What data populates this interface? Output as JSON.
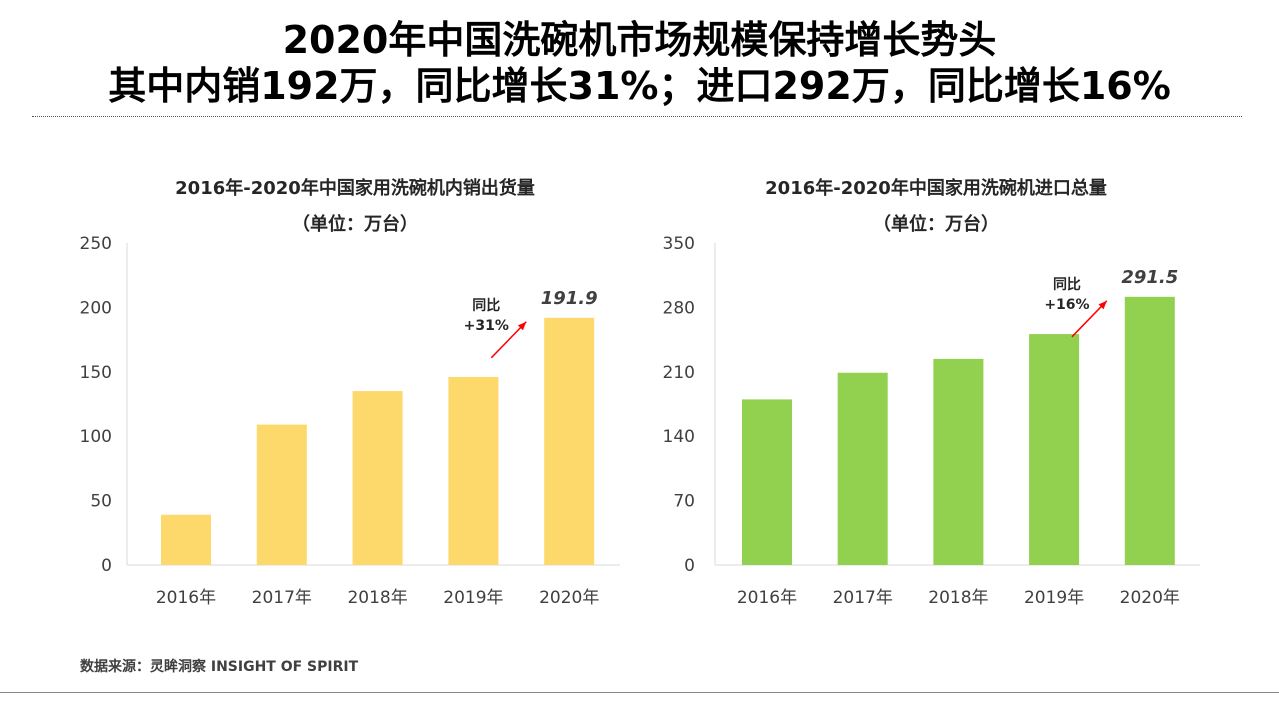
{
  "title": {
    "line1": "2020年中国洗碗机市场规模保持增长势头",
    "line2": "其中内销192万，同比增长31%；进口292万，同比增长16%"
  },
  "source": "数据来源：灵眸洞察 INSIGHT OF SPIRIT",
  "chart_data": [
    {
      "type": "bar",
      "title": "2016年-2020年中国家用洗碗机内销出货量",
      "subtitle": "（单位：万台）",
      "categories": [
        "2016年",
        "2017年",
        "2018年",
        "2019年",
        "2020年"
      ],
      "values": [
        39,
        109,
        135,
        146,
        191.9
      ],
      "ylim": [
        0,
        250
      ],
      "yticks": [
        0,
        50,
        100,
        150,
        200,
        250
      ],
      "color": "#FDD86A",
      "data_label": "191.9",
      "annotation": {
        "line1": "同比",
        "line2": "+31%"
      },
      "grid": false
    },
    {
      "type": "bar",
      "title": "2016年-2020年中国家用洗碗机进口总量",
      "subtitle": "（单位：万台）",
      "categories": [
        "2016年",
        "2017年",
        "2018年",
        "2019年",
        "2020年"
      ],
      "values": [
        180,
        209,
        224,
        251,
        291.5
      ],
      "ylim": [
        0,
        350
      ],
      "yticks": [
        0,
        70,
        140,
        210,
        280,
        350
      ],
      "color": "#92D050",
      "data_label": "291.5",
      "annotation": {
        "line1": "同比",
        "line2": "+16%"
      },
      "grid": false
    }
  ]
}
